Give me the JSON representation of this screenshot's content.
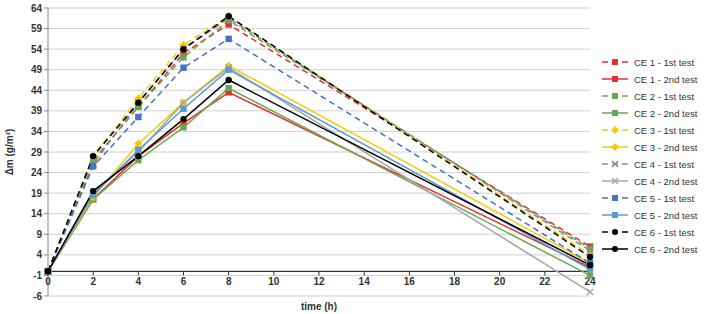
{
  "chart_data": {
    "type": "line",
    "x_label": "time (h)",
    "y_label": "Δm (g/m²)",
    "x": [
      0,
      2,
      4,
      6,
      8,
      24
    ],
    "xlim": [
      0,
      24
    ],
    "xticks": [
      0,
      2,
      4,
      6,
      8,
      10,
      12,
      14,
      16,
      18,
      20,
      22,
      24
    ],
    "ylim": [
      -6,
      64
    ],
    "yticks": [
      -6,
      -1,
      4,
      9,
      14,
      19,
      24,
      29,
      34,
      39,
      44,
      49,
      54,
      59,
      64
    ],
    "grid": true,
    "legend": "right",
    "series": [
      {
        "name": "CE 1 - 1st test",
        "color": "#e03030",
        "line_style": "dashed",
        "marker": "square",
        "values": [
          0,
          27,
          40,
          53,
          60,
          6
        ]
      },
      {
        "name": "CE 1 - 2nd test",
        "color": "#e03030",
        "line_style": "solid",
        "marker": "square",
        "values": [
          0,
          17.5,
          28,
          36,
          43.5,
          1
        ]
      },
      {
        "name": "CE 2 - 1st test",
        "color": "#6aa84f",
        "line_style": "dashed",
        "marker": "square",
        "values": [
          0,
          27,
          40,
          52,
          61,
          5.5
        ]
      },
      {
        "name": "CE 2 - 2nd test",
        "color": "#6aa84f",
        "line_style": "solid",
        "marker": "square",
        "values": [
          0,
          17.5,
          27,
          35,
          44.5,
          -1
        ]
      },
      {
        "name": "CE 3 - 1st test",
        "color": "#f2cc0c",
        "line_style": "dashed",
        "marker": "diamond",
        "values": [
          0,
          28,
          42,
          55,
          62,
          4
        ]
      },
      {
        "name": "CE 3 - 2nd test",
        "color": "#f2cc0c",
        "line_style": "solid",
        "marker": "diamond",
        "values": [
          0,
          18,
          31,
          41,
          50,
          2
        ]
      },
      {
        "name": "CE 4 - 1st test",
        "color": "#8c8c8c",
        "line_style": "dashed",
        "marker": "x",
        "values": [
          0,
          26,
          41,
          54,
          61.5,
          5
        ]
      },
      {
        "name": "CE 4 - 2nd test",
        "color": "#a6a6a6",
        "line_style": "solid",
        "marker": "x",
        "values": [
          0,
          19,
          29,
          41,
          49.5,
          -5
        ]
      },
      {
        "name": "CE 5 - 1st test",
        "color": "#4472c4",
        "line_style": "dashed",
        "marker": "square",
        "values": [
          0,
          25.5,
          37.5,
          49.5,
          56.5,
          2
        ]
      },
      {
        "name": "CE 5 - 2nd test",
        "color": "#5b9bd5",
        "line_style": "solid",
        "marker": "square",
        "values": [
          0,
          18.5,
          29.5,
          39.5,
          49,
          0.5
        ]
      },
      {
        "name": "CE 6 - 1st test",
        "color": "#000000",
        "line_style": "dashed",
        "marker": "circle",
        "values": [
          0,
          28,
          41,
          54,
          62,
          3.5
        ]
      },
      {
        "name": "CE 6 - 2nd test",
        "color": "#000000",
        "line_style": "solid",
        "marker": "circle",
        "values": [
          0,
          19.5,
          28,
          37,
          46.5,
          1.5
        ]
      }
    ]
  }
}
